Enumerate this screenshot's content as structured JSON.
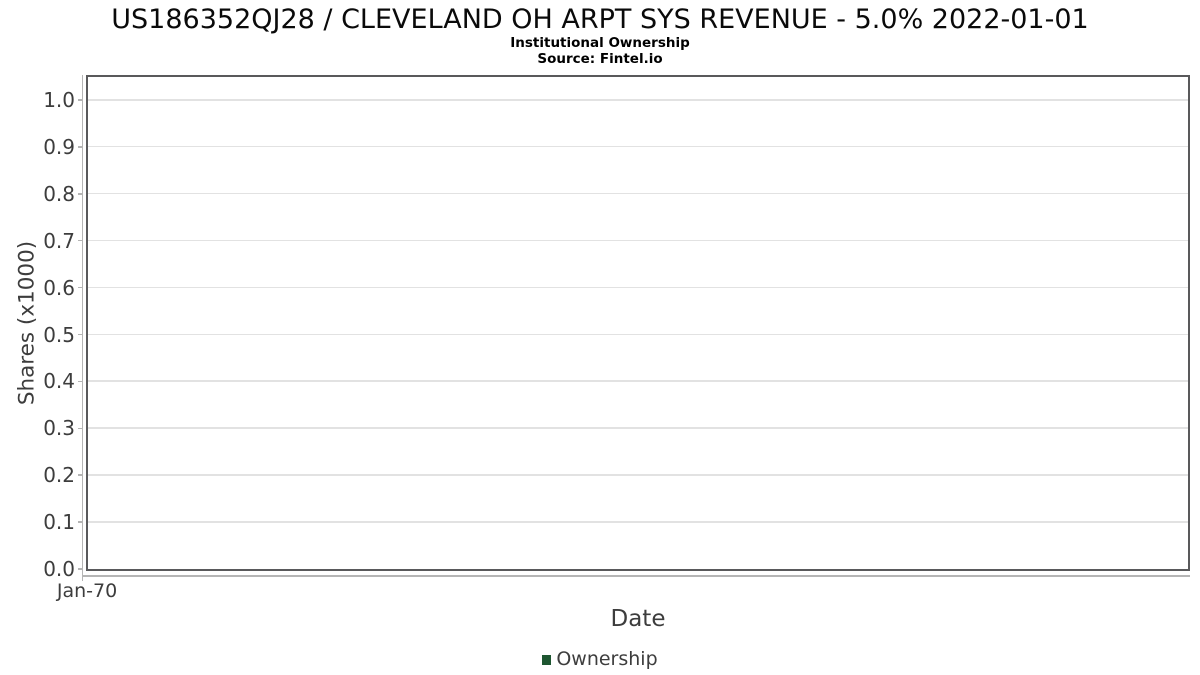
{
  "chart_data": {
    "type": "line",
    "title": "US186352QJ28 / CLEVELAND OH ARPT SYS REVENUE - 5.0% 2022-01-01",
    "subtitle": "Institutional Ownership",
    "source_note": "Source: Fintel.io",
    "xlabel": "Date",
    "ylabel": "Shares (x1000)",
    "x_tick_labels": [
      "Jan-70"
    ],
    "y_tick_labels": [
      "0.0",
      "0.1",
      "0.2",
      "0.3",
      "0.4",
      "0.5",
      "0.6",
      "0.7",
      "0.8",
      "0.9",
      "1.0"
    ],
    "ylim": [
      0.0,
      1.05
    ],
    "grid": true,
    "legend": {
      "position": "bottom",
      "entries": [
        {
          "label": "Ownership",
          "color": "#1e5631"
        }
      ]
    },
    "series": [
      {
        "name": "Ownership",
        "x": [],
        "values": [],
        "color": "#1e5631"
      }
    ]
  },
  "colors": {
    "legend_green": "#1e5631",
    "plot_border": "#59595b",
    "gridline": "#e2e2e2",
    "axis_line": "#b5b5b5",
    "text": "#3d3d3d",
    "title_text": "#0a0a0a",
    "plot_background": "#ffffff"
  }
}
